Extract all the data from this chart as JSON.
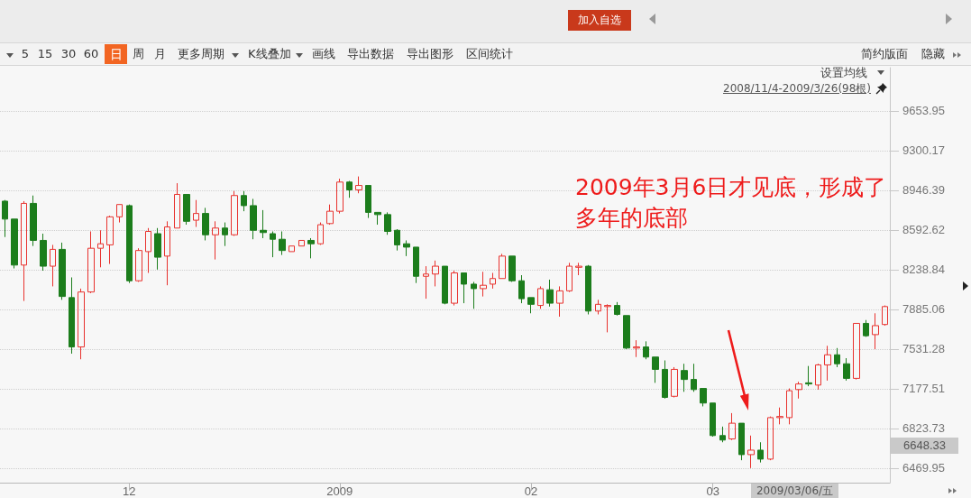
{
  "chart_data": {
    "type": "candlestick",
    "categories": [
      null,
      null,
      null,
      null,
      null,
      null,
      null,
      null,
      null,
      null,
      null,
      null,
      null,
      "12",
      null,
      null,
      null,
      null,
      null,
      null,
      null,
      null,
      null,
      null,
      null,
      null,
      null,
      null,
      null,
      null,
      null,
      null,
      null,
      null,
      null,
      "2009",
      null,
      null,
      null,
      null,
      null,
      null,
      null,
      null,
      null,
      null,
      null,
      null,
      null,
      null,
      null,
      null,
      null,
      null,
      null,
      "02",
      null,
      null,
      null,
      null,
      null,
      null,
      null,
      null,
      null,
      null,
      null,
      null,
      null,
      null,
      null,
      null,
      null,
      null,
      "03",
      null,
      null,
      null,
      null,
      null,
      null,
      null,
      null,
      null,
      null,
      null,
      null,
      null,
      null,
      null,
      null,
      null,
      null
    ],
    "ohlc": [
      [
        8850,
        8860,
        8530,
        8690
      ],
      [
        8690,
        8690,
        8250,
        8280
      ],
      [
        8280,
        8850,
        7960,
        8830
      ],
      [
        8830,
        8900,
        8450,
        8500
      ],
      [
        8500,
        8560,
        8230,
        8270
      ],
      [
        8270,
        8460,
        8090,
        8420
      ],
      [
        8420,
        8480,
        7970,
        8000
      ],
      [
        7990,
        8170,
        7490,
        7550
      ],
      [
        7550,
        8070,
        7440,
        8040
      ],
      [
        8040,
        8580,
        8030,
        8430
      ],
      [
        8430,
        8590,
        8260,
        8470
      ],
      [
        8460,
        8720,
        8290,
        8710
      ],
      [
        8710,
        8820,
        8660,
        8820
      ],
      [
        8810,
        8820,
        8120,
        8140
      ],
      [
        8140,
        8430,
        8130,
        8410
      ],
      [
        8400,
        8610,
        8210,
        8580
      ],
      [
        8560,
        8610,
        8240,
        8350
      ],
      [
        8360,
        8670,
        8100,
        8620
      ],
      [
        8610,
        9010,
        8610,
        8910
      ],
      [
        8910,
        8910,
        8640,
        8670
      ],
      [
        8680,
        8860,
        8620,
        8740
      ],
      [
        8740,
        8790,
        8500,
        8550
      ],
      [
        8550,
        8670,
        8330,
        8610
      ],
      [
        8610,
        8660,
        8450,
        8550
      ],
      [
        8550,
        8940,
        8540,
        8900
      ],
      [
        8900,
        8940,
        8760,
        8810
      ],
      [
        8810,
        8870,
        8510,
        8590
      ],
      [
        8590,
        8770,
        8520,
        8570
      ],
      [
        8560,
        8580,
        8350,
        8510
      ],
      [
        8510,
        8580,
        8370,
        8410
      ],
      [
        8400,
        8450,
        8400,
        8450
      ],
      [
        8450,
        8500,
        8450,
        8500
      ],
      [
        8500,
        8520,
        8340,
        8470
      ],
      [
        8470,
        8660,
        8460,
        8640
      ],
      [
        8650,
        8820,
        8640,
        8760
      ],
      [
        8760,
        9050,
        8740,
        9020
      ],
      [
        9020,
        9030,
        8880,
        8950
      ],
      [
        8950,
        9070,
        8920,
        8990
      ],
      [
        8990,
        8990,
        8700,
        8750
      ],
      [
        8750,
        8750,
        8640,
        8730
      ],
      [
        8730,
        8750,
        8550,
        8580
      ],
      [
        8590,
        8600,
        8410,
        8460
      ],
      [
        8470,
        8500,
        8360,
        8440
      ],
      [
        8440,
        8440,
        8120,
        8180
      ],
      [
        8180,
        8270,
        7980,
        8200
      ],
      [
        8200,
        8320,
        8090,
        8270
      ],
      [
        8270,
        8270,
        7930,
        7940
      ],
      [
        7940,
        8230,
        7920,
        8210
      ],
      [
        8210,
        8210,
        7940,
        8110
      ],
      [
        8110,
        8130,
        7890,
        8070
      ],
      [
        8070,
        8220,
        8000,
        8100
      ],
      [
        8110,
        8210,
        8070,
        8160
      ],
      [
        8160,
        8380,
        8160,
        8360
      ],
      [
        8360,
        8360,
        8130,
        8140
      ],
      [
        8140,
        8190,
        7940,
        7980
      ],
      [
        7990,
        7990,
        7850,
        7930
      ],
      [
        7920,
        8090,
        7890,
        8070
      ],
      [
        8060,
        8150,
        7910,
        7940
      ],
      [
        7940,
        8090,
        7820,
        8050
      ],
      [
        8050,
        8300,
        8040,
        8270
      ],
      [
        8260,
        8300,
        8190,
        8270
      ],
      [
        8270,
        8280,
        7840,
        7870
      ],
      [
        7870,
        7970,
        7840,
        7930
      ],
      [
        7910,
        7930,
        7680,
        7920
      ],
      [
        7920,
        7950,
        7830,
        7840
      ],
      [
        7830,
        7830,
        7530,
        7540
      ],
      [
        7540,
        7610,
        7460,
        7550
      ],
      [
        7550,
        7600,
        7440,
        7460
      ],
      [
        7460,
        7460,
        7230,
        7350
      ],
      [
        7350,
        7430,
        7090,
        7100
      ],
      [
        7110,
        7370,
        7100,
        7350
      ],
      [
        7340,
        7400,
        7150,
        7260
      ],
      [
        7260,
        7400,
        7150,
        7170
      ],
      [
        7180,
        7180,
        7020,
        7050
      ],
      [
        7050,
        7050,
        6750,
        6760
      ],
      [
        6760,
        6840,
        6700,
        6720
      ],
      [
        6730,
        6960,
        6720,
        6870
      ],
      [
        6870,
        6870,
        6540,
        6590
      ],
      [
        6590,
        6760,
        6470,
        6630
      ],
      [
        6630,
        6700,
        6520,
        6550
      ],
      [
        6550,
        6930,
        6540,
        6920
      ],
      [
        6920,
        7010,
        6860,
        6930
      ],
      [
        6920,
        7180,
        6860,
        7160
      ],
      [
        7170,
        7240,
        7090,
        7220
      ],
      [
        7230,
        7380,
        7200,
        7220
      ],
      [
        7210,
        7400,
        7170,
        7390
      ],
      [
        7390,
        7560,
        7250,
        7480
      ],
      [
        7480,
        7540,
        7370,
        7400
      ],
      [
        7400,
        7450,
        7250,
        7270
      ],
      [
        7270,
        7760,
        7260,
        7760
      ],
      [
        7760,
        7790,
        7640,
        7650
      ],
      [
        7660,
        7850,
        7530,
        7740
      ],
      [
        7750,
        7920,
        7740,
        7910
      ]
    ],
    "colors": [
      "#1c7d1c",
      "#1c7d1c",
      "#e8322e",
      "#1c7d1c",
      "#1c7d1c",
      "#e8322e",
      "#1c7d1c",
      "#1c7d1c",
      "#e8322e",
      "#e8322e",
      "#e8322e",
      "#e8322e",
      "#e8322e",
      "#1c7d1c",
      "#e8322e",
      "#e8322e",
      "#1c7d1c",
      "#e8322e",
      "#e8322e",
      "#1c7d1c",
      "#e8322e",
      "#1c7d1c",
      "#e8322e",
      "#1c7d1c",
      "#e8322e",
      "#1c7d1c",
      "#1c7d1c",
      "#1c7d1c",
      "#1c7d1c",
      "#1c7d1c",
      "#e8322e",
      "#e8322e",
      "#1c7d1c",
      "#e8322e",
      "#e8322e",
      "#e8322e",
      "#1c7d1c",
      "#e8322e",
      "#1c7d1c",
      "#1c7d1c",
      "#1c7d1c",
      "#1c7d1c",
      "#1c7d1c",
      "#1c7d1c",
      "#e8322e",
      "#e8322e",
      "#1c7d1c",
      "#e8322e",
      "#1c7d1c",
      "#1c7d1c",
      "#e8322e",
      "#e8322e",
      "#e8322e",
      "#1c7d1c",
      "#1c7d1c",
      "#1c7d1c",
      "#e8322e",
      "#1c7d1c",
      "#e8322e",
      "#e8322e",
      "#e8322e",
      "#1c7d1c",
      "#e8322e",
      "#e8322e",
      "#1c7d1c",
      "#1c7d1c",
      "#e8322e",
      "#1c7d1c",
      "#1c7d1c",
      "#1c7d1c",
      "#e8322e",
      "#1c7d1c",
      "#1c7d1c",
      "#1c7d1c",
      "#1c7d1c",
      "#1c7d1c",
      "#e8322e",
      "#1c7d1c",
      "#e8322e",
      "#1c7d1c",
      "#e8322e",
      "#e8322e",
      "#e8322e",
      "#e8322e",
      "#1c7d1c",
      "#e8322e",
      "#e8322e",
      "#1c7d1c",
      "#1c7d1c",
      "#e8322e",
      "#1c7d1c",
      "#e8322e",
      "#e8322e"
    ],
    "ylim": [
      6340,
      10040
    ],
    "yticks": [
      6469.95,
      6823.73,
      7177.51,
      7531.28,
      7885.06,
      8238.84,
      8592.62,
      8946.39,
      9300.17,
      9653.95
    ],
    "grid": "y",
    "annotations": [
      "2009年3月6日才见底，形成了多年的底部",
      "加入自选",
      "5",
      "15",
      "30",
      "60",
      "日",
      "周",
      "月",
      "更多周期",
      "K线叠加",
      "画线",
      "导出数据",
      "导出图形",
      "区间统计",
      "简约版面",
      "隐藏",
      "设置均线",
      "2008/11/4-2009/3/26(98根)",
      "2009/03/06/五",
      "6648.33"
    ]
  }
}
